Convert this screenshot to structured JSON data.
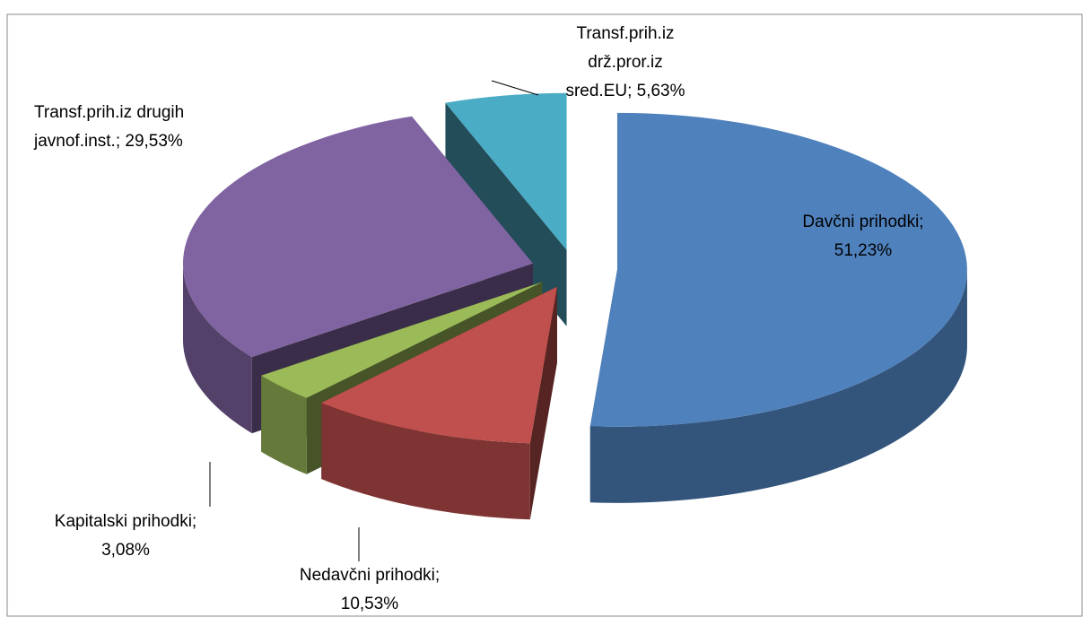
{
  "chart_data": {
    "type": "pie",
    "three_d": true,
    "exploded": true,
    "values": [
      51.23,
      10.53,
      3.08,
      29.53,
      5.63
    ],
    "value_labels": [
      [
        "Davčni prihodki;",
        "51,23%"
      ],
      [
        "Nedavčni prihodki;",
        "10,53%"
      ],
      [
        "Kapitalski prihodki;",
        "3,08%"
      ],
      [
        "Transf.prih.iz drugih",
        "javnof.inst.; 29,53%"
      ],
      [
        "Transf.prih.iz",
        "drž.pror.iz",
        "sred.EU; 5,63%"
      ]
    ],
    "colors": [
      "#4f81bd",
      "#c0504d",
      "#9bbb59",
      "#8064a2",
      "#4bacc6"
    ]
  }
}
